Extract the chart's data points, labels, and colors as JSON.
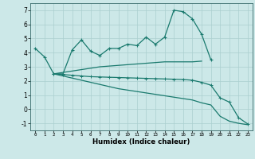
{
  "xlabel": "Humidex (Indice chaleur)",
  "x": [
    0,
    1,
    2,
    3,
    4,
    5,
    6,
    7,
    8,
    9,
    10,
    11,
    12,
    13,
    14,
    15,
    16,
    17,
    18,
    19,
    20,
    21,
    22,
    23
  ],
  "line1": [
    4.3,
    3.7,
    2.5,
    2.5,
    4.2,
    4.9,
    4.1,
    3.8,
    4.3,
    4.3,
    4.6,
    4.5,
    5.1,
    4.6,
    5.1,
    7.0,
    6.9,
    6.4,
    5.3,
    3.5,
    null,
    null,
    null,
    null
  ],
  "line2": [
    null,
    null,
    2.5,
    2.6,
    2.7,
    2.8,
    2.9,
    3.0,
    3.05,
    3.1,
    3.15,
    3.2,
    3.25,
    3.3,
    3.35,
    3.35,
    3.35,
    3.35,
    3.4,
    null,
    null,
    null,
    null,
    null
  ],
  "line3": [
    null,
    null,
    2.5,
    2.45,
    2.4,
    2.35,
    2.3,
    2.28,
    2.26,
    2.24,
    2.22,
    2.2,
    2.18,
    2.16,
    2.14,
    2.12,
    2.1,
    2.05,
    1.9,
    1.7,
    0.8,
    0.5,
    -0.6,
    -1.05
  ],
  "line4": [
    null,
    null,
    2.5,
    2.35,
    2.2,
    2.05,
    1.9,
    1.75,
    1.6,
    1.45,
    1.35,
    1.25,
    1.15,
    1.05,
    0.95,
    0.85,
    0.75,
    0.65,
    0.45,
    0.3,
    -0.5,
    -0.85,
    -1.0,
    -1.1
  ],
  "ylim": [
    -1.5,
    7.5
  ],
  "yticks": [
    -1,
    0,
    1,
    2,
    3,
    4,
    5,
    6,
    7
  ],
  "xticks": [
    0,
    1,
    2,
    3,
    4,
    5,
    6,
    7,
    8,
    9,
    10,
    11,
    12,
    13,
    14,
    15,
    16,
    17,
    18,
    19,
    20,
    21,
    22,
    23
  ],
  "xlim": [
    -0.5,
    23.5
  ],
  "line_color": "#1a7a6e",
  "bg_color": "#cce8e8",
  "grid_color": "#aacfcf"
}
